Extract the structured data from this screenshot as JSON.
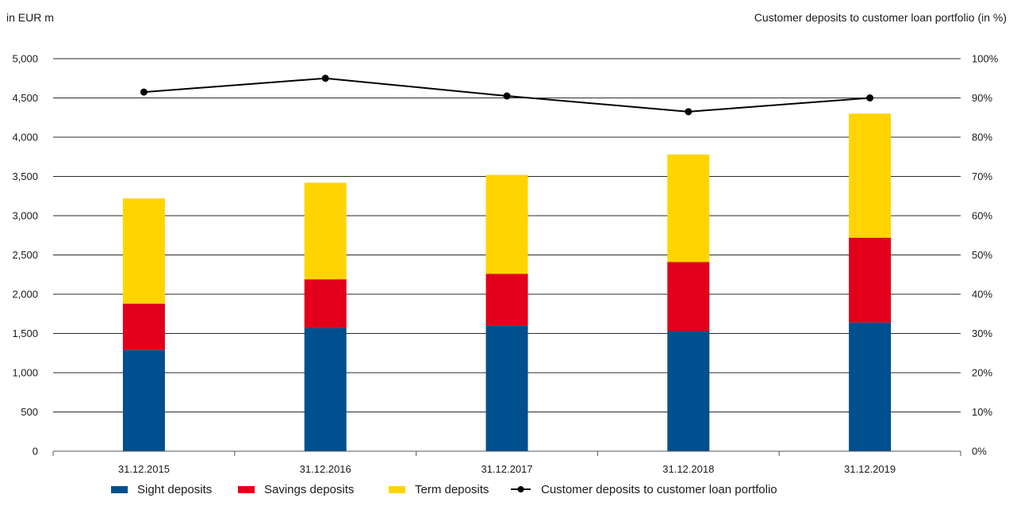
{
  "chart_data": {
    "type": "bar",
    "stacked": true,
    "left_axis_label": "in EUR m",
    "right_axis_label": "Customer deposits to customer loan portfolio (in %)",
    "categories": [
      "31.12.2015",
      "31.12.2016",
      "31.12.2017",
      "31.12.2018",
      "31.12.2019"
    ],
    "ylim": [
      0,
      5000
    ],
    "y2lim": [
      0,
      100
    ],
    "yticks": [
      "0",
      "500",
      "1,000",
      "1,500",
      "2,000",
      "2,500",
      "3,000",
      "3,500",
      "4,000",
      "4,500",
      "5,000"
    ],
    "y2ticks": [
      "0%",
      "10%",
      "20%",
      "30%",
      "40%",
      "50%",
      "60%",
      "70%",
      "80%",
      "90%",
      "100%"
    ],
    "grid": true,
    "legend_position": "bottom",
    "series": [
      {
        "name": "Sight deposits",
        "color": "#00508f",
        "values": [
          1290,
          1570,
          1600,
          1530,
          1640
        ]
      },
      {
        "name": "Savings deposits",
        "color": "#e2001a",
        "values": [
          590,
          620,
          660,
          880,
          1080
        ]
      },
      {
        "name": "Term deposits",
        "color": "#ffd400",
        "values": [
          1340,
          1230,
          1260,
          1370,
          1580
        ]
      }
    ],
    "line_series": {
      "name": "Customer deposits to customer loan portfolio",
      "color": "#000000",
      "axis": "right",
      "values": [
        91.5,
        95,
        90.5,
        86.5,
        90
      ]
    }
  }
}
